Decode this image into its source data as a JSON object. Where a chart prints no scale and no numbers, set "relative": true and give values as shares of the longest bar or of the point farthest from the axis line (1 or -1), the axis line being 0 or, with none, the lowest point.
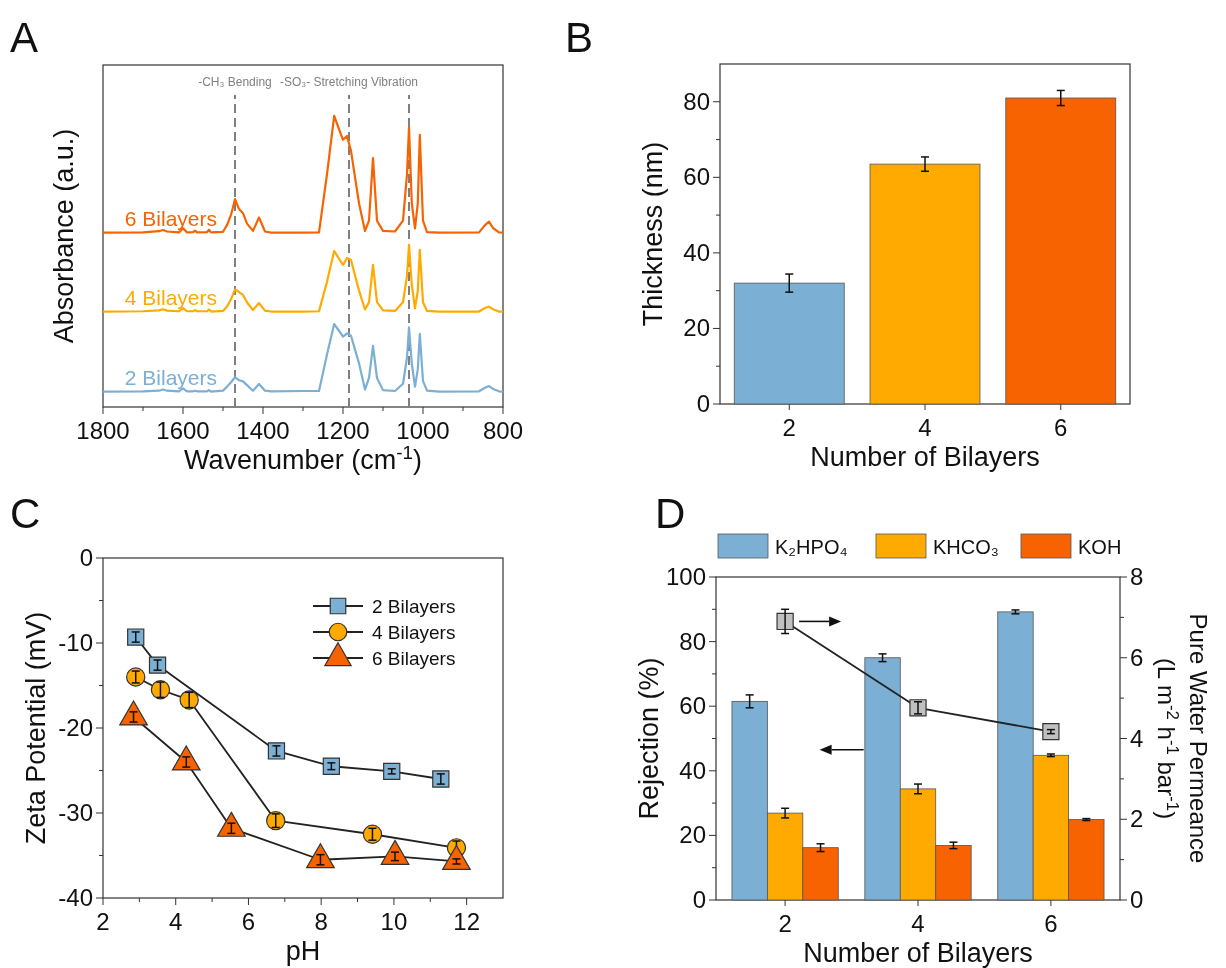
{
  "chart_data": [
    {
      "type": "line",
      "title": "A",
      "xlabel": "Wavenumber (cm$^{-1}$)",
      "ylabel": "Absorbance (a.u.)",
      "relative": true,
      "tick_labels": "x",
      "legend": false,
      "xlim": [
        1800,
        800
      ],
      "xticks": [
        1800,
        {
          "value": 1700,
          "label": null
        },
        1600,
        {
          "value": 1500,
          "label": null
        },
        1400,
        {
          "value": 1300,
          "label": null
        },
        1200,
        {
          "value": 1100,
          "label": null
        },
        1000,
        {
          "value": 900,
          "label": null
        },
        800
      ],
      "x": [
        1800,
        1700,
        1660,
        1650,
        1640,
        1610,
        1600,
        1590,
        1575,
        1570,
        1565,
        1540,
        1535,
        1530,
        1500,
        1490,
        1480,
        1470,
        1460,
        1450,
        1440,
        1425,
        1410,
        1395,
        1380,
        1300,
        1260,
        1240,
        1222,
        1210,
        1200,
        1190,
        1180,
        1160,
        1145,
        1135,
        1125,
        1115,
        1100,
        1070,
        1050,
        1040,
        1035,
        1028,
        1020,
        1013,
        1008,
        1000,
        990,
        960,
        860,
        845,
        835,
        825,
        810,
        800
      ],
      "series": [
        {
          "name": "6 Bilayers",
          "color": "#f76300",
          "values": [
            0.599,
            0.6,
            0.604,
            0.608,
            0.603,
            0.6,
            0.614,
            0.6,
            0.601,
            0.606,
            0.6,
            0.601,
            0.609,
            0.6,
            0.602,
            0.625,
            0.66,
            0.714,
            0.68,
            0.666,
            0.63,
            0.605,
            0.651,
            0.603,
            0.599,
            0.599,
            0.6,
            0.8,
            1.0,
            0.955,
            0.918,
            0.931,
            0.88,
            0.7,
            0.605,
            0.64,
            0.855,
            0.64,
            0.605,
            0.603,
            0.64,
            0.8,
            0.961,
            0.7,
            0.614,
            0.7,
            0.935,
            0.64,
            0.601,
            0.599,
            0.6,
            0.625,
            0.637,
            0.615,
            0.6,
            0.599
          ]
        },
        {
          "name": "4 Bilayers",
          "color": "#ffaa00",
          "values": [
            0.328,
            0.329,
            0.332,
            0.336,
            0.331,
            0.329,
            0.34,
            0.329,
            0.329,
            0.333,
            0.329,
            0.329,
            0.335,
            0.328,
            0.33,
            0.345,
            0.37,
            0.404,
            0.395,
            0.385,
            0.36,
            0.333,
            0.357,
            0.331,
            0.328,
            0.328,
            0.329,
            0.43,
            0.536,
            0.51,
            0.488,
            0.512,
            0.505,
            0.4,
            0.335,
            0.36,
            0.488,
            0.36,
            0.332,
            0.33,
            0.36,
            0.45,
            0.557,
            0.42,
            0.339,
            0.4,
            0.54,
            0.36,
            0.33,
            0.328,
            0.328,
            0.34,
            0.345,
            0.336,
            0.328,
            0.328
          ]
        },
        {
          "name": "2 Bilayers",
          "color": "#7bafd4",
          "values": [
            0.053,
            0.054,
            0.056,
            0.06,
            0.056,
            0.054,
            0.064,
            0.054,
            0.054,
            0.056,
            0.054,
            0.054,
            0.058,
            0.053,
            0.056,
            0.07,
            0.085,
            0.102,
            0.092,
            0.088,
            0.075,
            0.056,
            0.079,
            0.056,
            0.054,
            0.055,
            0.055,
            0.18,
            0.285,
            0.262,
            0.242,
            0.253,
            0.245,
            0.15,
            0.06,
            0.1,
            0.21,
            0.1,
            0.058,
            0.055,
            0.08,
            0.17,
            0.274,
            0.15,
            0.07,
            0.13,
            0.251,
            0.09,
            0.056,
            0.053,
            0.054,
            0.066,
            0.072,
            0.062,
            0.054,
            0.053
          ]
        }
      ],
      "ref_lines": [
        {
          "axis": "x",
          "value": 1470,
          "label": "-CH₃ Bending",
          "color": "#7f7f7f",
          "line_style": "dashed"
        },
        {
          "axis": "x",
          "value": 1185,
          "label": "-SO₃- Stretching Vibration",
          "color": "#7f7f7f",
          "line_style": "dashed"
        },
        {
          "axis": "x",
          "value": 1035,
          "color": "#7f7f7f",
          "line_style": "dashed"
        }
      ]
    },
    {
      "type": "bar",
      "title": "B",
      "categories": [
        "2",
        "4",
        "6"
      ],
      "values": [
        32,
        63.5,
        81
      ],
      "colors": [
        "#7bafd4",
        "#ffaa00",
        "#f76300"
      ],
      "errors": [
        2.4,
        1.9,
        2
      ],
      "ylim": [
        0,
        90
      ],
      "yticks": [
        0,
        {
          "value": 10,
          "label": null
        },
        20,
        {
          "value": 30,
          "label": null
        },
        40,
        {
          "value": 50,
          "label": null
        },
        60,
        {
          "value": 70,
          "label": null
        },
        80
      ],
      "xlabel": "Number of Bilayers",
      "ylabel": "Thickness (nm)"
    },
    {
      "type": "line",
      "title": "C",
      "xlabel": "pH",
      "ylabel": "Zeta Potential (mV)",
      "legend": "top right",
      "xlim": [
        2,
        13
      ],
      "xticks": [
        2,
        {
          "value": 3,
          "label": null
        },
        4,
        {
          "value": 5,
          "label": null
        },
        6,
        {
          "value": 7,
          "label": null
        },
        8,
        {
          "value": 9,
          "label": null
        },
        10,
        {
          "value": 11,
          "label": null
        },
        12
      ],
      "ylim": [
        -40,
        0
      ],
      "yticks": [
        -40,
        {
          "value": -35,
          "label": null
        },
        -30,
        {
          "value": -25,
          "label": null
        },
        -20,
        {
          "value": -15,
          "label": null
        },
        -10,
        {
          "value": -5,
          "label": null
        },
        0
      ],
      "series": [
        {
          "name": "2 Bilayers",
          "marker": "square",
          "color": "#7bafd4",
          "x": [
            2.9,
            3.5,
            6.77,
            8.28,
            9.94,
            11.29
          ],
          "values": [
            -9.3,
            -12.6,
            -22.7,
            -24.5,
            -25.1,
            -26.0
          ],
          "errors": [
            0.6,
            0.6,
            0.6,
            0.4,
            0.3,
            0.6
          ]
        },
        {
          "name": "4 Bilayers",
          "marker": "circle",
          "color": "#ffaa00",
          "x": [
            2.9,
            3.58,
            4.37,
            6.75,
            9.41,
            11.72
          ],
          "values": [
            -14.0,
            -15.5,
            -16.7,
            -30.9,
            -32.5,
            -34.1
          ],
          "errors": [
            0.7,
            0.9,
            0.9,
            0.8,
            0.7,
            0.8
          ]
        },
        {
          "name": "6 Bilayers",
          "marker": "triangle",
          "color": "#f76300",
          "x": [
            2.84,
            4.29,
            5.53,
            7.98,
            10.03,
            11.72
          ],
          "values": [
            -18.7,
            -24.0,
            -31.8,
            -35.5,
            -35.1,
            -35.7
          ],
          "errors": [
            0.6,
            0.6,
            0.6,
            0.6,
            0.5,
            0.3
          ]
        }
      ]
    },
    {
      "type": "bar",
      "title": "D",
      "categories": [
        "2",
        "4",
        "6"
      ],
      "xlabel": "Number of Bilayers",
      "ylabel": "Rejection (%)",
      "y2label": "Pure Water Permeance\n(L m$^{-2}$ h$^{-1}$ bar$^{-1}$)",
      "legend": "top",
      "ylim": [
        0,
        100
      ],
      "yticks": [
        0,
        {
          "value": 10,
          "label": null
        },
        20,
        {
          "value": 30,
          "label": null
        },
        40,
        {
          "value": 50,
          "label": null
        },
        60,
        {
          "value": 70,
          "label": null
        },
        80,
        {
          "value": 90,
          "label": null
        },
        100
      ],
      "y2lim": [
        0,
        8
      ],
      "y2ticks": [
        0,
        {
          "value": 1,
          "label": null
        },
        2,
        {
          "value": 3,
          "label": null
        },
        4,
        {
          "value": 5,
          "label": null
        },
        6,
        {
          "value": 7,
          "label": null
        },
        8
      ],
      "series": [
        {
          "name": "K₂HPO₄",
          "color": "#7bafd4",
          "values": [
            61.5,
            75,
            89.2
          ],
          "errors": [
            2,
            1.2,
            0.6
          ]
        },
        {
          "name": "KHCO₃",
          "color": "#ffaa00",
          "values": [
            26.9,
            34.4,
            44.8
          ],
          "errors": [
            1.5,
            1.5,
            0.4
          ]
        },
        {
          "name": "KOH",
          "color": "#f76300",
          "values": [
            16.2,
            16.9,
            24.9
          ],
          "errors": [
            1.2,
            1,
            0.3
          ]
        },
        {
          "type": "line",
          "axis": "y2",
          "marker": "square",
          "color": "#c0c0c0",
          "values": [
            6.9,
            4.76,
            4.17
          ],
          "errors": [
            0.3,
            0.15,
            0.05
          ]
        }
      ]
    }
  ]
}
